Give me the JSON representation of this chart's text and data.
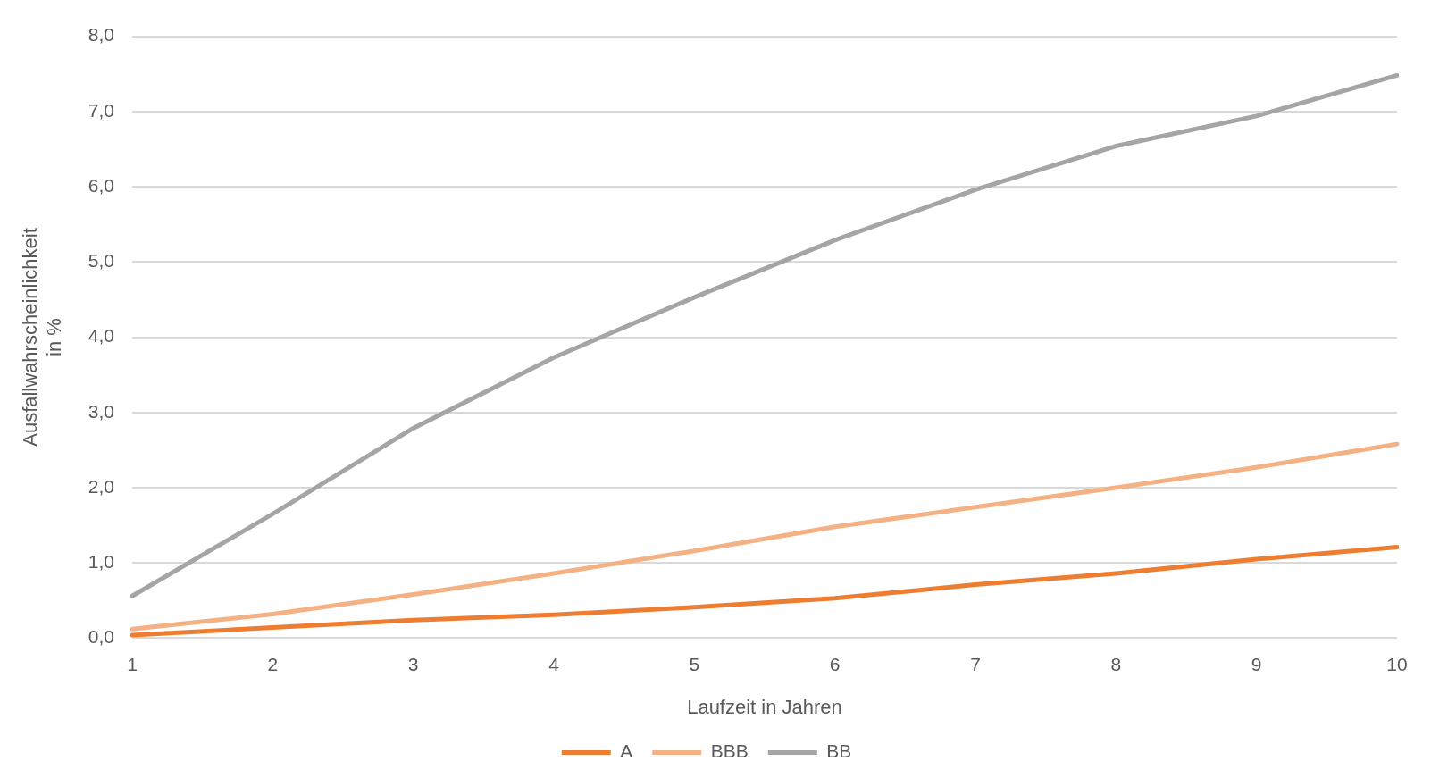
{
  "chart_data": {
    "type": "line",
    "xlabel": "Laufzeit in Jahren",
    "ylabel": [
      "Ausfallwahrscheinlichkeit",
      "in %"
    ],
    "categories": [
      "1",
      "2",
      "3",
      "4",
      "5",
      "6",
      "7",
      "8",
      "9",
      "10"
    ],
    "series": [
      {
        "name": "A",
        "color": "#ed7d31",
        "values": [
          0.04,
          0.14,
          0.24,
          0.31,
          0.41,
          0.53,
          0.71,
          0.86,
          1.05,
          1.21
        ]
      },
      {
        "name": "BBB",
        "color": "#f4b183",
        "values": [
          0.12,
          0.32,
          0.58,
          0.86,
          1.16,
          1.48,
          1.74,
          2.0,
          2.27,
          2.58
        ]
      },
      {
        "name": "BB",
        "color": "#a5a5a5",
        "values": [
          0.56,
          1.65,
          2.79,
          3.73,
          4.53,
          5.29,
          5.96,
          6.54,
          6.94,
          7.48
        ]
      }
    ],
    "ylim": [
      0,
      8
    ],
    "yticks": [
      {
        "value": 0,
        "label": "0,0"
      },
      {
        "value": 1,
        "label": "1,0"
      },
      {
        "value": 2,
        "label": "2,0"
      },
      {
        "value": 3,
        "label": "3,0"
      },
      {
        "value": 4,
        "label": "4,0"
      },
      {
        "value": 5,
        "label": "5,0"
      },
      {
        "value": 6,
        "label": "6,0"
      },
      {
        "value": 7,
        "label": "7,0"
      },
      {
        "value": 8,
        "label": "8,0"
      }
    ],
    "grid": "y",
    "legend": "bottom",
    "marker": "none",
    "line_style": "solid"
  }
}
